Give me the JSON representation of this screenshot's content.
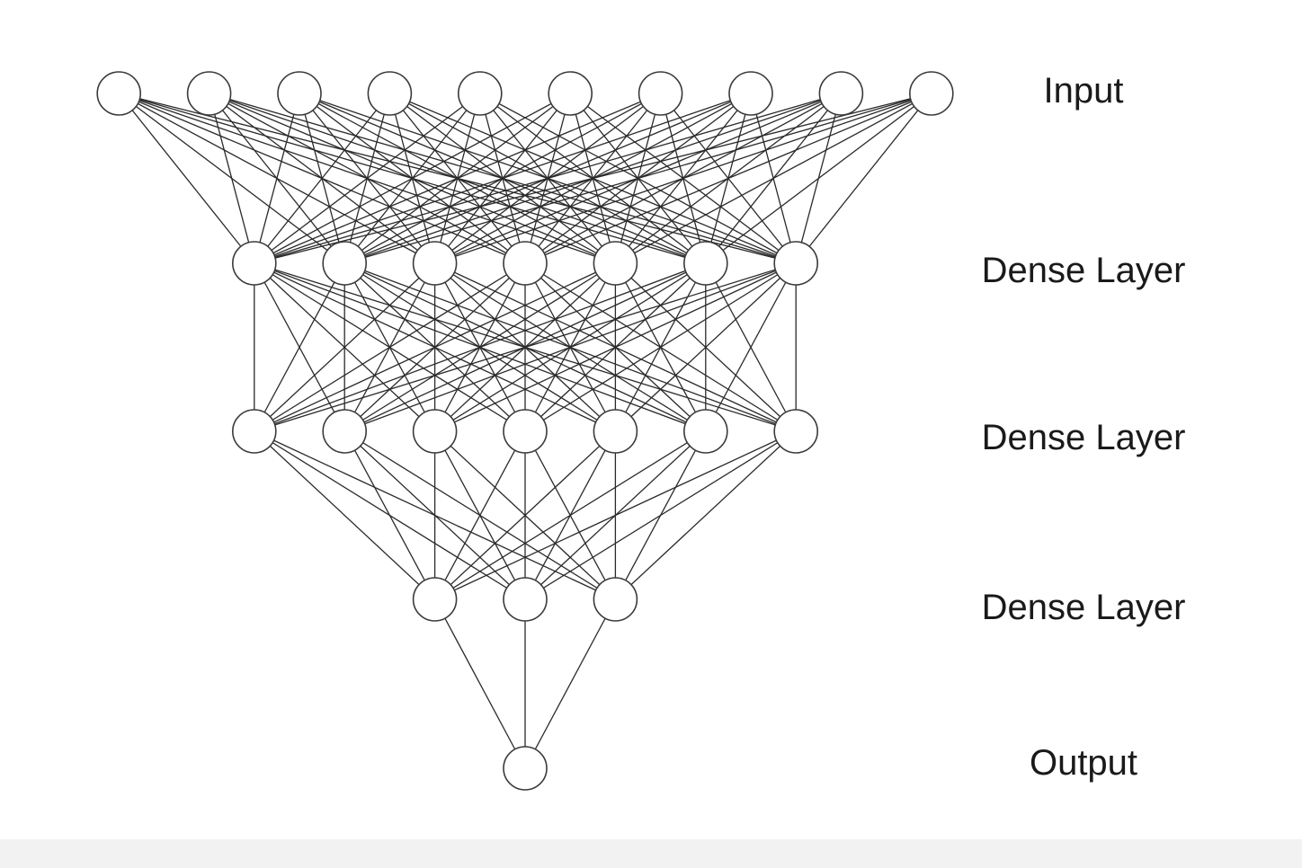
{
  "diagram": {
    "colors": {
      "edge": "#2a2a2a",
      "node_stroke": "#3a3a3a",
      "node_fill": "#ffffff",
      "label": "#1a1a1a",
      "background": "#ffffff"
    },
    "layers": [
      {
        "label": "Input",
        "nodes": 10
      },
      {
        "label": "Dense Layer",
        "nodes": 7
      },
      {
        "label": "Dense Layer",
        "nodes": 7
      },
      {
        "label": "Dense Layer",
        "nodes": 3
      },
      {
        "label": "Output",
        "nodes": 1
      }
    ],
    "connectivity": "fully-connected"
  }
}
